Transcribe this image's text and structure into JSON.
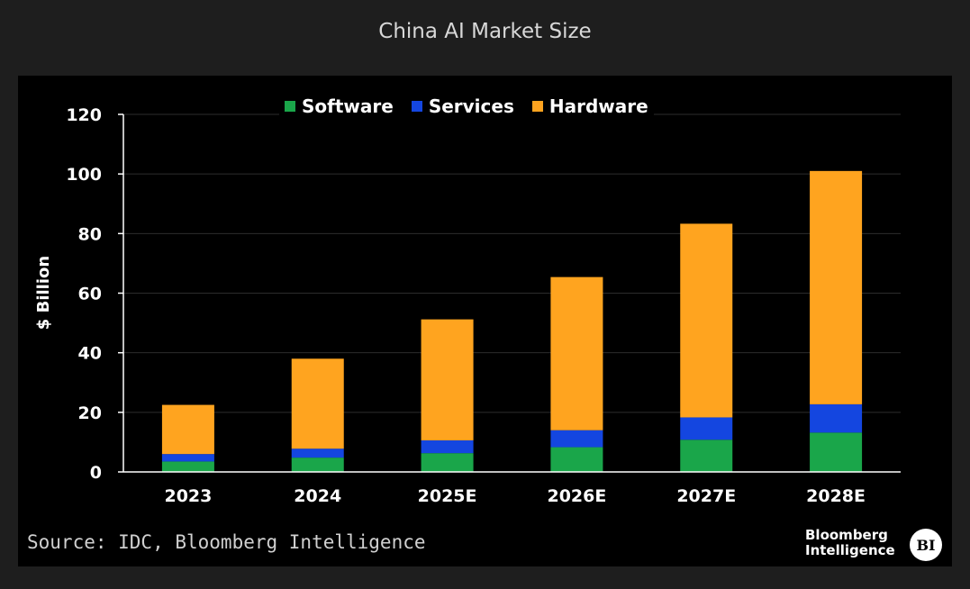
{
  "page": {
    "title": "China AI Market Size",
    "source": "Source: IDC, Bloomberg Intelligence",
    "brand_line1": "Bloomberg",
    "brand_line2": "Intelligence",
    "brand_badge": "BI"
  },
  "chart_data": {
    "type": "bar",
    "stacked": true,
    "title": "China AI Market Size",
    "xlabel": "",
    "ylabel": "$ Billion",
    "ylim": [
      0,
      120
    ],
    "yticks": [
      0,
      20,
      40,
      60,
      80,
      100,
      120
    ],
    "ytick_labels": [
      "0",
      "20",
      "40",
      "60",
      "80",
      "100",
      "120"
    ],
    "grid": true,
    "legend_position": "top-center",
    "categories": [
      "2023",
      "2024",
      "2025E",
      "2026E",
      "2027E",
      "2028E"
    ],
    "series": [
      {
        "name": "Software",
        "color": "#1aa64a",
        "values": [
          3.5,
          4.8,
          6.3,
          8.3,
          10.8,
          13.2
        ]
      },
      {
        "name": "Services",
        "color": "#1446e0",
        "values": [
          2.5,
          3.0,
          4.3,
          5.7,
          7.5,
          9.5
        ]
      },
      {
        "name": "Hardware",
        "color": "#ffa41f",
        "values": [
          16.5,
          30.2,
          40.6,
          51.4,
          65.0,
          78.3
        ]
      }
    ]
  }
}
